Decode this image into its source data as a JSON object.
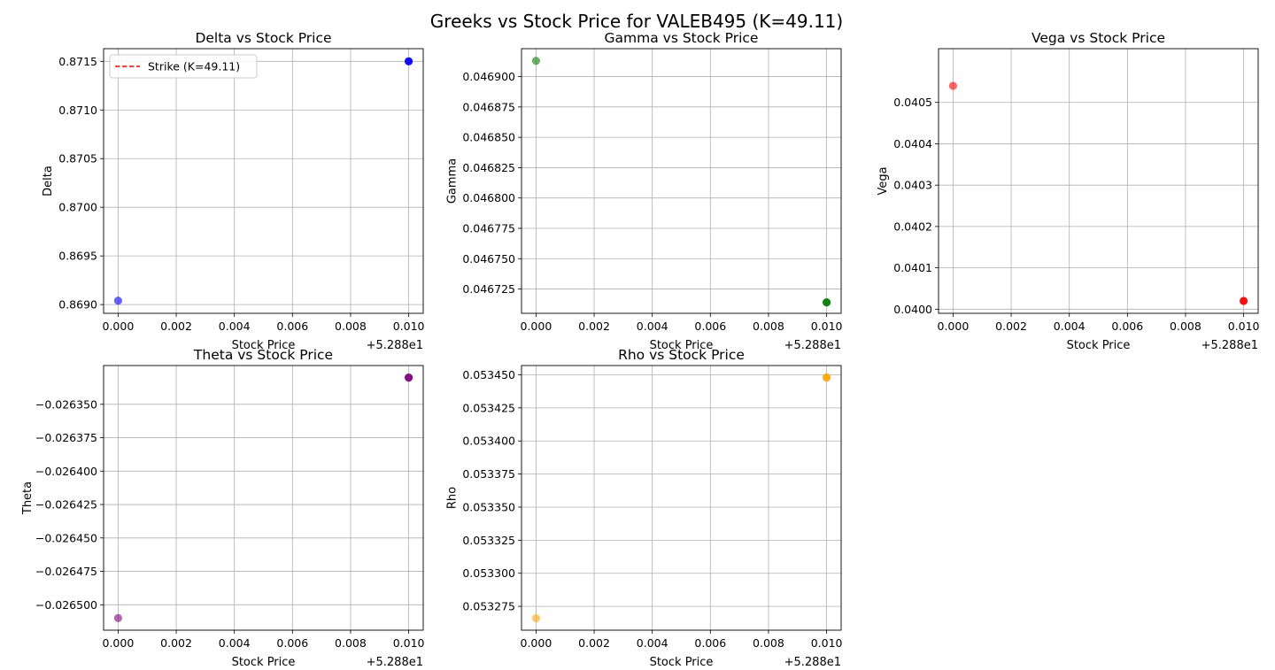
{
  "figure": {
    "title": "Greeks vs Stock Price for VALEB495 (K=49.11)"
  },
  "chart_data": [
    {
      "type": "scatter",
      "title": "Delta vs Stock Price",
      "xlabel": "Stock Price",
      "ylabel": "Delta",
      "x_offset_label": "+5.288e1",
      "xlim": [
        -0.0005,
        0.0105
      ],
      "ylim": [
        0.86891,
        0.87163
      ],
      "xticks": [
        0.0,
        0.002,
        0.004,
        0.006,
        0.008,
        0.01
      ],
      "xtick_labels": [
        "0.000",
        "0.002",
        "0.004",
        "0.006",
        "0.008",
        "0.010"
      ],
      "yticks": [
        0.869,
        0.8695,
        0.87,
        0.8705,
        0.871,
        0.8715
      ],
      "ytick_labels": [
        "0.8690",
        "0.8695",
        "0.8700",
        "0.8705",
        "0.8710",
        "0.8715"
      ],
      "grid": true,
      "color": "#0000ff",
      "points": [
        {
          "x": 0.0,
          "y": 0.86904,
          "strong": false
        },
        {
          "x": 0.01,
          "y": 0.8715,
          "strong": true
        }
      ],
      "legend": {
        "placement": "upper-left",
        "entries": [
          {
            "label": "Strike (K=49.11)",
            "color": "#ff0000",
            "style": "dashed"
          }
        ]
      }
    },
    {
      "type": "scatter",
      "title": "Gamma vs Stock Price",
      "xlabel": "Stock Price",
      "ylabel": "Gamma",
      "x_offset_label": "+5.288e1",
      "xlim": [
        -0.0005,
        0.0105
      ],
      "ylim": [
        0.046705,
        0.046923
      ],
      "xticks": [
        0.0,
        0.002,
        0.004,
        0.006,
        0.008,
        0.01
      ],
      "xtick_labels": [
        "0.000",
        "0.002",
        "0.004",
        "0.006",
        "0.008",
        "0.010"
      ],
      "yticks": [
        0.046725,
        0.04675,
        0.046775,
        0.0468,
        0.046825,
        0.04685,
        0.046875,
        0.0469
      ],
      "ytick_labels": [
        "0.046725",
        "0.046750",
        "0.046775",
        "0.046800",
        "0.046825",
        "0.046850",
        "0.046875",
        "0.046900"
      ],
      "grid": true,
      "color": "#008000",
      "points": [
        {
          "x": 0.0,
          "y": 0.046913,
          "strong": false
        },
        {
          "x": 0.01,
          "y": 0.046714,
          "strong": true
        }
      ]
    },
    {
      "type": "scatter",
      "title": "Vega vs Stock Price",
      "xlabel": "Stock Price",
      "ylabel": "Vega",
      "x_offset_label": "+5.288e1",
      "xlim": [
        -0.0005,
        0.0105
      ],
      "ylim": [
        0.03999,
        0.04063
      ],
      "xticks": [
        0.0,
        0.002,
        0.004,
        0.006,
        0.008,
        0.01
      ],
      "xtick_labels": [
        "0.000",
        "0.002",
        "0.004",
        "0.006",
        "0.008",
        "0.010"
      ],
      "yticks": [
        0.04,
        0.0401,
        0.0402,
        0.0403,
        0.0404,
        0.0405
      ],
      "ytick_labels": [
        "0.0400",
        "0.0401",
        "0.0402",
        "0.0403",
        "0.0404",
        "0.0405"
      ],
      "grid": true,
      "color": "#ff0000",
      "points": [
        {
          "x": 0.0,
          "y": 0.04054,
          "strong": false
        },
        {
          "x": 0.01,
          "y": 0.04002,
          "strong": true
        }
      ]
    },
    {
      "type": "scatter",
      "title": "Theta vs Stock Price",
      "xlabel": "Stock Price",
      "ylabel": "Theta",
      "x_offset_label": "+5.288e1",
      "xlim": [
        -0.0005,
        0.0105
      ],
      "ylim": [
        -0.026519,
        -0.026321
      ],
      "xticks": [
        0.0,
        0.002,
        0.004,
        0.006,
        0.008,
        0.01
      ],
      "xtick_labels": [
        "0.000",
        "0.002",
        "0.004",
        "0.006",
        "0.008",
        "0.010"
      ],
      "yticks": [
        -0.0265,
        -0.026475,
        -0.02645,
        -0.026425,
        -0.0264,
        -0.026375,
        -0.02635
      ],
      "ytick_labels": [
        "−0.026500",
        "−0.026475",
        "−0.026450",
        "−0.026425",
        "−0.026400",
        "−0.026375",
        "−0.026350"
      ],
      "grid": true,
      "color": "#800080",
      "points": [
        {
          "x": 0.0,
          "y": -0.02651,
          "strong": false
        },
        {
          "x": 0.01,
          "y": -0.02633,
          "strong": true
        }
      ]
    },
    {
      "type": "scatter",
      "title": "Rho vs Stock Price",
      "xlabel": "Stock Price",
      "ylabel": "Rho",
      "x_offset_label": "+5.288e1",
      "xlim": [
        -0.0005,
        0.0105
      ],
      "ylim": [
        0.053257,
        0.053457
      ],
      "xticks": [
        0.0,
        0.002,
        0.004,
        0.006,
        0.008,
        0.01
      ],
      "xtick_labels": [
        "0.000",
        "0.002",
        "0.004",
        "0.006",
        "0.008",
        "0.010"
      ],
      "yticks": [
        0.053275,
        0.0533,
        0.053325,
        0.05335,
        0.053375,
        0.0534,
        0.053425,
        0.05345
      ],
      "ytick_labels": [
        "0.053275",
        "0.053300",
        "0.053325",
        "0.053350",
        "0.053375",
        "0.053400",
        "0.053425",
        "0.053450"
      ],
      "grid": true,
      "color": "#ffa500",
      "points": [
        {
          "x": 0.0,
          "y": 0.053266,
          "strong": false
        },
        {
          "x": 0.01,
          "y": 0.053448,
          "strong": true
        }
      ]
    }
  ]
}
